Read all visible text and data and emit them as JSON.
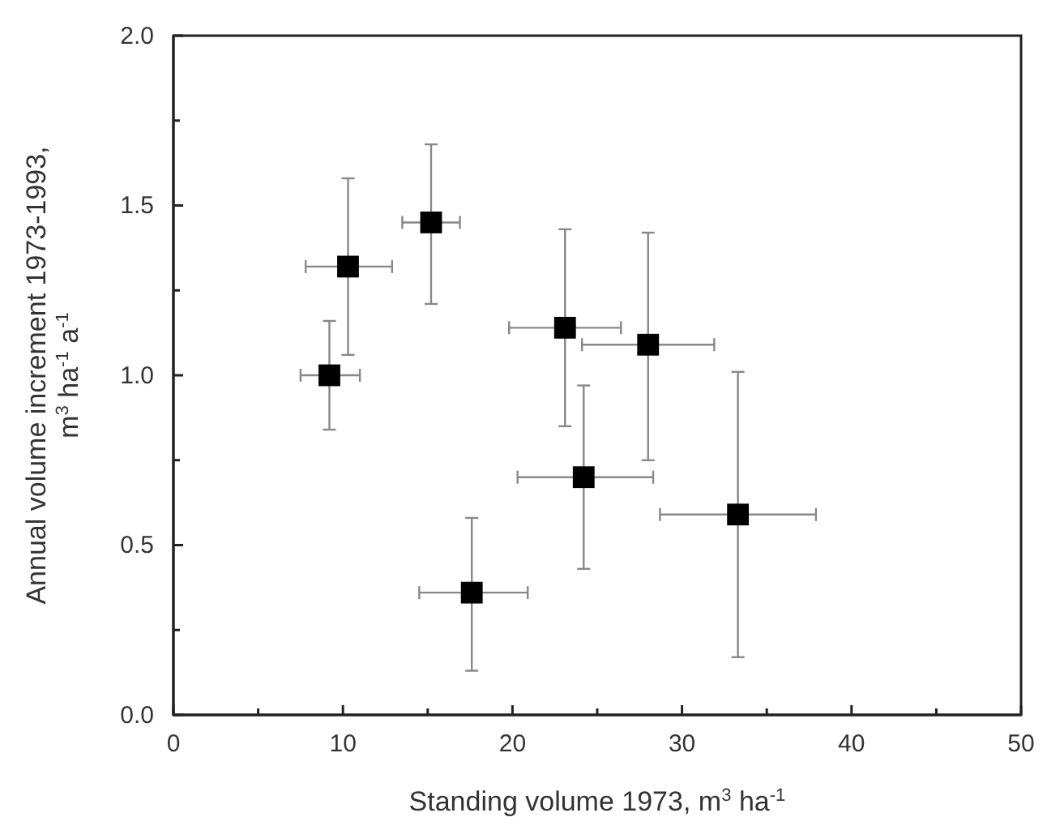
{
  "chart_data": {
    "type": "scatter",
    "xlabel": "Standing volume 1973, m$^{3}$ ha$^{-1}$",
    "ylabel": "Annual volume increment 1973-1993,\nm$^{3}$ ha$^{-1}$ a$^{-1}$",
    "x": [
      9.2,
      10.3,
      15.2,
      17.6,
      23.1,
      24.2,
      28.0,
      33.3
    ],
    "values": [
      1.0,
      1.32,
      1.45,
      0.36,
      1.14,
      0.7,
      1.09,
      0.59
    ],
    "errors": [
      [
        0.84,
        1.16
      ],
      [
        1.06,
        1.58
      ],
      [
        1.21,
        1.68
      ],
      [
        0.13,
        0.58
      ],
      [
        0.85,
        1.43
      ],
      [
        0.43,
        0.97
      ],
      [
        0.75,
        1.42
      ],
      [
        0.17,
        1.01
      ]
    ],
    "xerrors": [
      [
        7.5,
        11.0
      ],
      [
        7.8,
        12.9
      ],
      [
        13.5,
        16.9
      ],
      [
        14.5,
        20.9
      ],
      [
        19.8,
        26.4
      ],
      [
        20.3,
        28.3
      ],
      [
        24.1,
        31.9
      ],
      [
        28.7,
        37.9
      ]
    ],
    "color": "#000000",
    "marker": "square",
    "grid": false,
    "xlim": [
      0,
      50
    ],
    "xticks": [
      0,
      {
        "value": 5,
        "label": null
      },
      10,
      {
        "value": 15,
        "label": null
      },
      20,
      {
        "value": 25,
        "label": null
      },
      30,
      {
        "value": 35,
        "label": null
      },
      40,
      {
        "value": 45,
        "label": null
      },
      50
    ],
    "ylim": [
      0,
      2.0
    ],
    "yticks": [
      {
        "value": 0,
        "label": "0.0"
      },
      {
        "value": 0.25,
        "label": null
      },
      {
        "value": 0.5,
        "label": "0.5"
      },
      {
        "value": 0.75,
        "label": null
      },
      {
        "value": 1.0,
        "label": "1.0"
      },
      {
        "value": 1.25,
        "label": null
      },
      {
        "value": 1.5,
        "label": "1.5"
      },
      {
        "value": 1.75,
        "label": null
      },
      {
        "value": 2.0,
        "label": "2.0"
      }
    ]
  }
}
